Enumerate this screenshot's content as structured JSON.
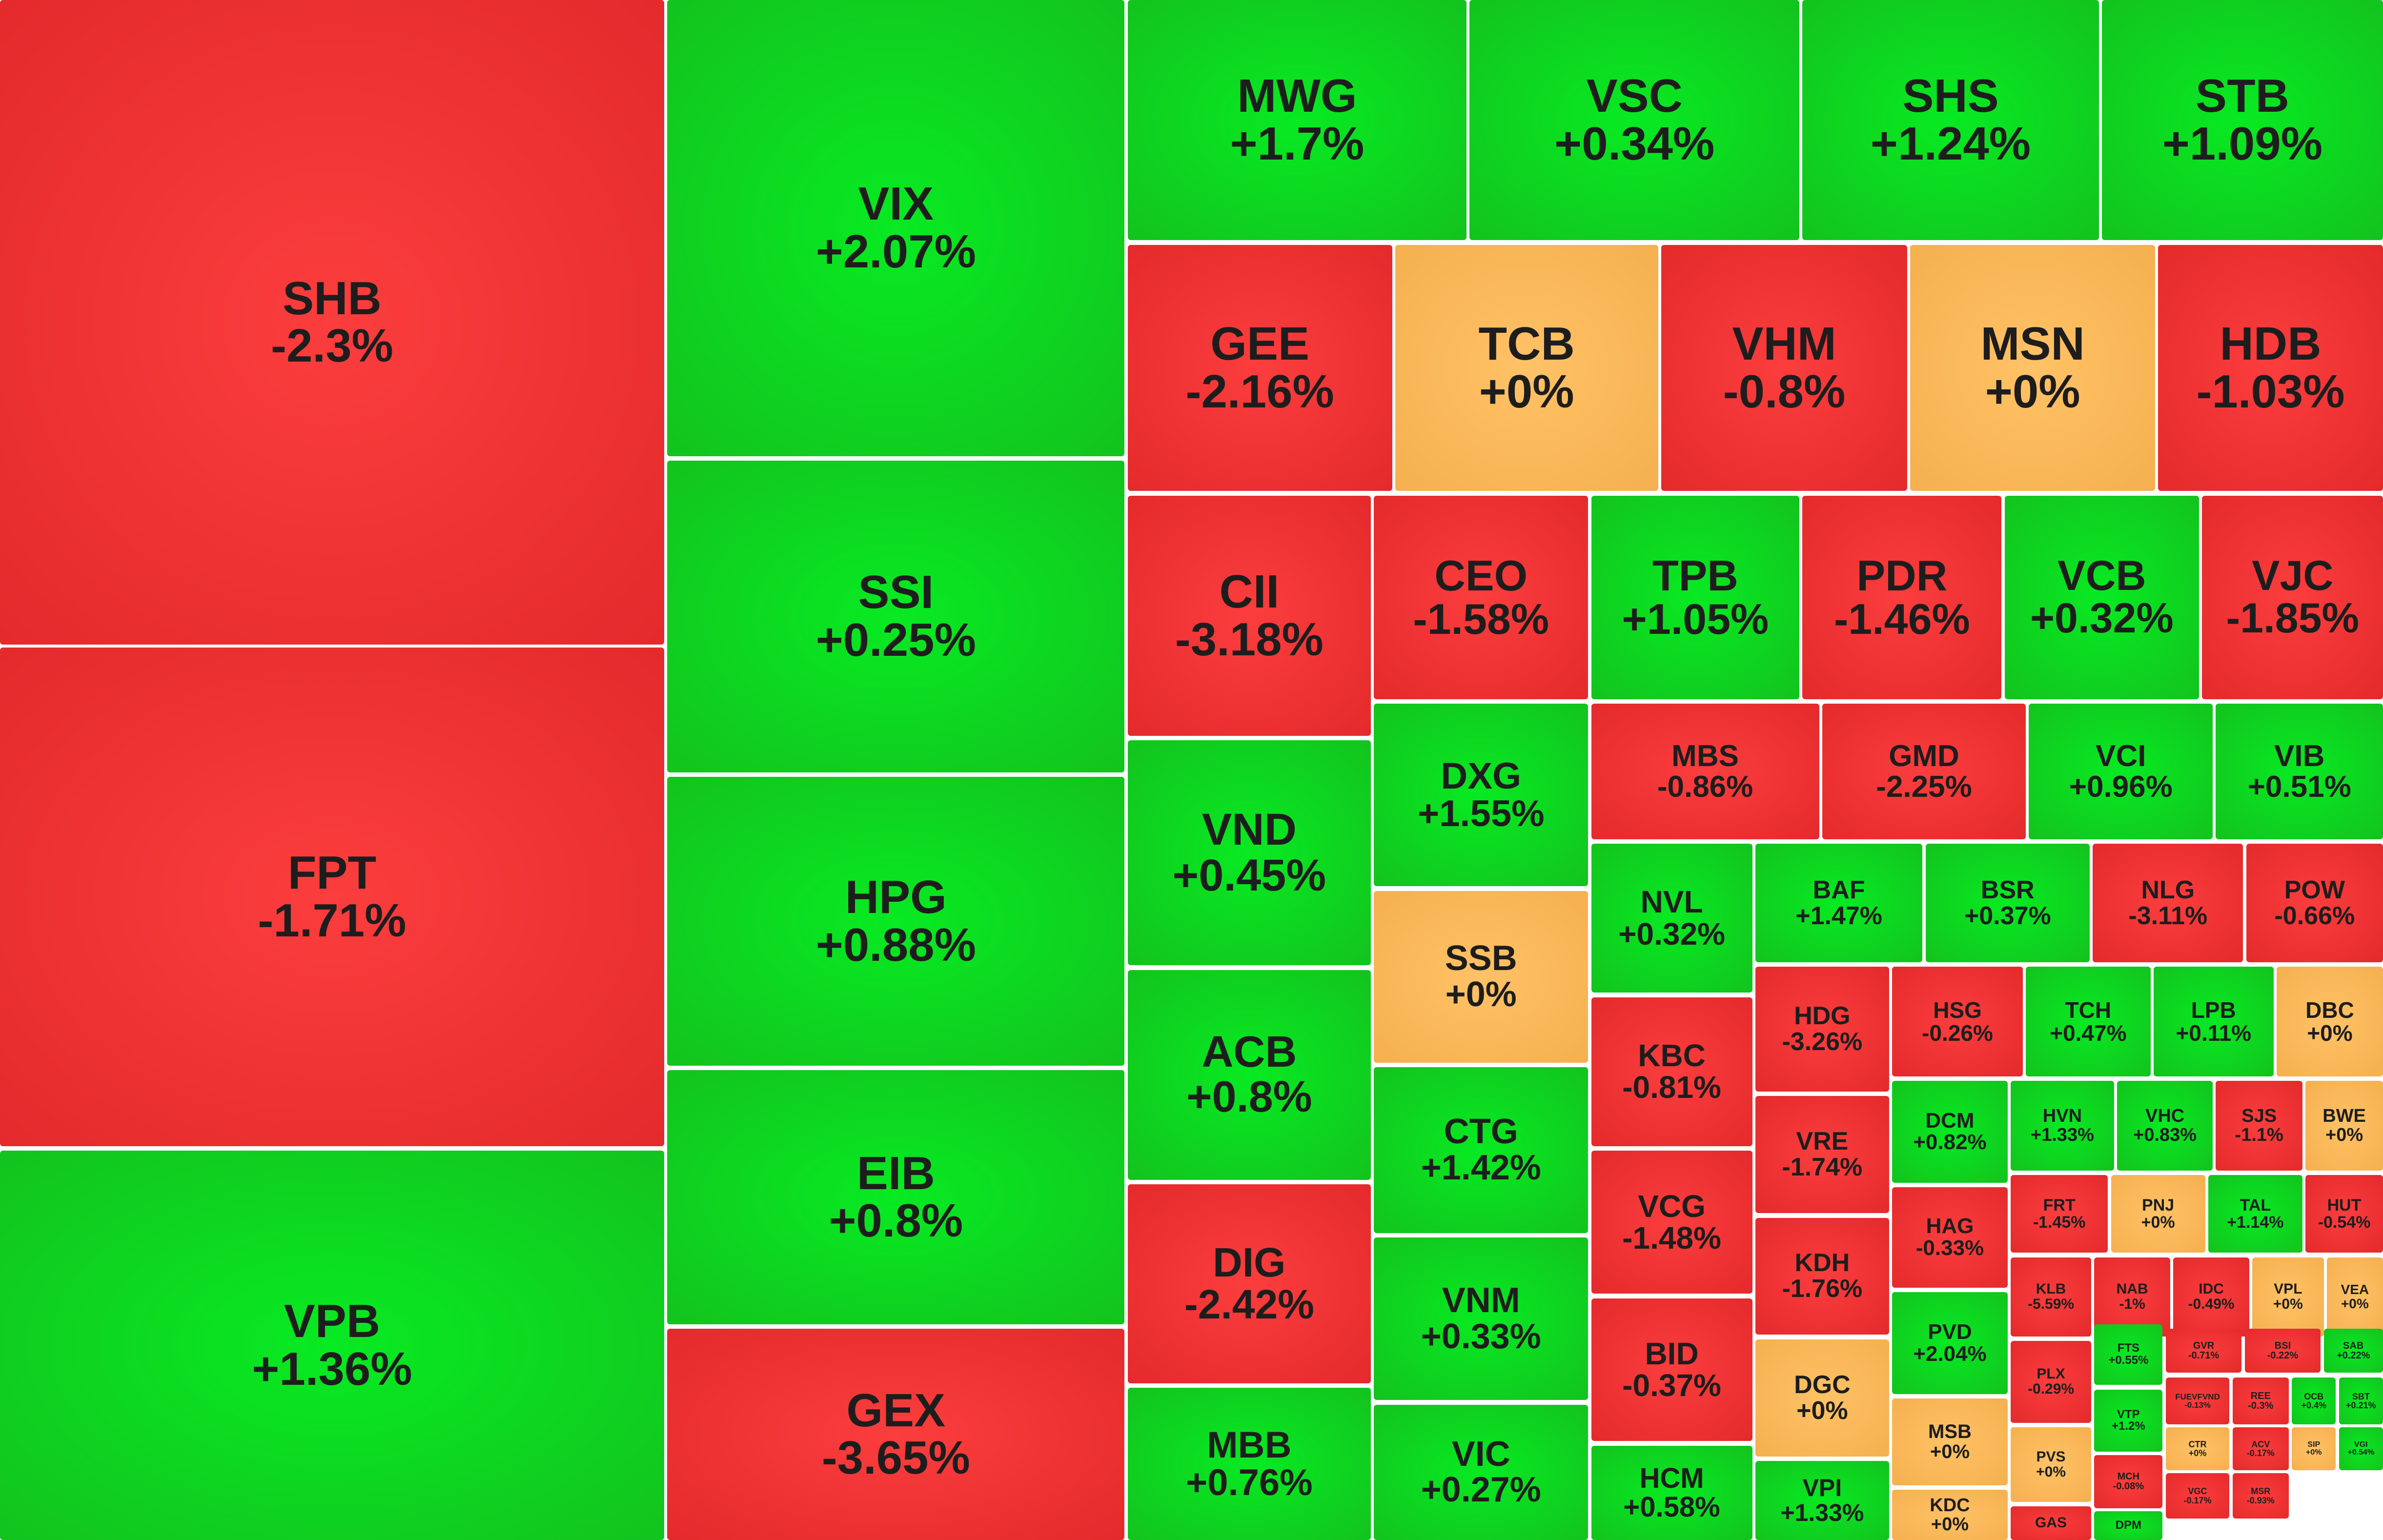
{
  "colors": {
    "down": "#ee3333",
    "up": "#0fd81f",
    "flat": "#fbb85c",
    "text": "#1d1d1d"
  },
  "chart_data": {
    "type": "heatmap",
    "value_unit": "%",
    "tiles": [
      {
        "ticker": "SHB",
        "change": "-2.3%",
        "value": -2.3
      },
      {
        "ticker": "FPT",
        "change": "-1.71%",
        "value": -1.71
      },
      {
        "ticker": "VPB",
        "change": "+1.36%",
        "value": 1.36
      },
      {
        "ticker": "VIX",
        "change": "+2.07%",
        "value": 2.07
      },
      {
        "ticker": "SSI",
        "change": "+0.25%",
        "value": 0.25
      },
      {
        "ticker": "HPG",
        "change": "+0.88%",
        "value": 0.88
      },
      {
        "ticker": "EIB",
        "change": "+0.8%",
        "value": 0.8
      },
      {
        "ticker": "GEX",
        "change": "-3.65%",
        "value": -3.65
      },
      {
        "ticker": "MWG",
        "change": "+1.7%",
        "value": 1.7
      },
      {
        "ticker": "VSC",
        "change": "+0.34%",
        "value": 0.34
      },
      {
        "ticker": "SHS",
        "change": "+1.24%",
        "value": 1.24
      },
      {
        "ticker": "STB",
        "change": "+1.09%",
        "value": 1.09
      },
      {
        "ticker": "GEE",
        "change": "-2.16%",
        "value": -2.16
      },
      {
        "ticker": "TCB",
        "change": "+0%",
        "value": 0
      },
      {
        "ticker": "VHM",
        "change": "-0.8%",
        "value": -0.8
      },
      {
        "ticker": "MSN",
        "change": "+0%",
        "value": 0
      },
      {
        "ticker": "HDB",
        "change": "-1.03%",
        "value": -1.03
      },
      {
        "ticker": "CII",
        "change": "-3.18%",
        "value": -3.18
      },
      {
        "ticker": "VND",
        "change": "+0.45%",
        "value": 0.45
      },
      {
        "ticker": "ACB",
        "change": "+0.8%",
        "value": 0.8
      },
      {
        "ticker": "DIG",
        "change": "-2.42%",
        "value": -2.42
      },
      {
        "ticker": "MBB",
        "change": "+0.76%",
        "value": 0.76
      },
      {
        "ticker": "CEO",
        "change": "-1.58%",
        "value": -1.58
      },
      {
        "ticker": "TPB",
        "change": "+1.05%",
        "value": 1.05
      },
      {
        "ticker": "PDR",
        "change": "-1.46%",
        "value": -1.46
      },
      {
        "ticker": "VCB",
        "change": "+0.32%",
        "value": 0.32
      },
      {
        "ticker": "VJC",
        "change": "-1.85%",
        "value": -1.85
      },
      {
        "ticker": "DXG",
        "change": "+1.55%",
        "value": 1.55
      },
      {
        "ticker": "SSB",
        "change": "+0%",
        "value": 0
      },
      {
        "ticker": "CTG",
        "change": "+1.42%",
        "value": 1.42
      },
      {
        "ticker": "VNM",
        "change": "+0.33%",
        "value": 0.33
      },
      {
        "ticker": "VIC",
        "change": "+0.27%",
        "value": 0.27
      },
      {
        "ticker": "MBS",
        "change": "-0.86%",
        "value": -0.86
      },
      {
        "ticker": "GMD",
        "change": "-2.25%",
        "value": -2.25
      },
      {
        "ticker": "VCI",
        "change": "+0.96%",
        "value": 0.96
      },
      {
        "ticker": "VIB",
        "change": "+0.51%",
        "value": 0.51
      },
      {
        "ticker": "NVL",
        "change": "+0.32%",
        "value": 0.32
      },
      {
        "ticker": "KBC",
        "change": "-0.81%",
        "value": -0.81
      },
      {
        "ticker": "VCG",
        "change": "-1.48%",
        "value": -1.48
      },
      {
        "ticker": "BID",
        "change": "-0.37%",
        "value": -0.37
      },
      {
        "ticker": "HCM",
        "change": "+0.58%",
        "value": 0.58
      },
      {
        "ticker": "BAF",
        "change": "+1.47%",
        "value": 1.47
      },
      {
        "ticker": "BSR",
        "change": "+0.37%",
        "value": 0.37
      },
      {
        "ticker": "NLG",
        "change": "-3.11%",
        "value": -3.11
      },
      {
        "ticker": "POW",
        "change": "-0.66%",
        "value": -0.66
      },
      {
        "ticker": "HDG",
        "change": "-3.26%",
        "value": -3.26
      },
      {
        "ticker": "VRE",
        "change": "-1.74%",
        "value": -1.74
      },
      {
        "ticker": "KDH",
        "change": "-1.76%",
        "value": -1.76
      },
      {
        "ticker": "DGC",
        "change": "+0%",
        "value": 0
      },
      {
        "ticker": "VPI",
        "change": "+1.33%",
        "value": 1.33
      },
      {
        "ticker": "HSG",
        "change": "-0.26%",
        "value": -0.26
      },
      {
        "ticker": "TCH",
        "change": "+0.47%",
        "value": 0.47
      },
      {
        "ticker": "LPB",
        "change": "+0.11%",
        "value": 0.11
      },
      {
        "ticker": "DBC",
        "change": "+0%",
        "value": 0
      },
      {
        "ticker": "DCM",
        "change": "+0.82%",
        "value": 0.82
      },
      {
        "ticker": "HAG",
        "change": "-0.33%",
        "value": -0.33
      },
      {
        "ticker": "PVD",
        "change": "+2.04%",
        "value": 2.04
      },
      {
        "ticker": "MSB",
        "change": "+0%",
        "value": 0
      },
      {
        "ticker": "KDC",
        "change": "+0%",
        "value": 0
      },
      {
        "ticker": "HVN",
        "change": "+1.33%",
        "value": 1.33
      },
      {
        "ticker": "VHC",
        "change": "+0.83%",
        "value": 0.83
      },
      {
        "ticker": "SJS",
        "change": "-1.1%",
        "value": -1.1
      },
      {
        "ticker": "BWE",
        "change": "+0%",
        "value": 0
      },
      {
        "ticker": "FRT",
        "change": "-1.45%",
        "value": -1.45
      },
      {
        "ticker": "PNJ",
        "change": "+0%",
        "value": 0
      },
      {
        "ticker": "TAL",
        "change": "+1.14%",
        "value": 1.14
      },
      {
        "ticker": "HUT",
        "change": "-0.54%",
        "value": -0.54
      },
      {
        "ticker": "KLB",
        "change": "-5.59%",
        "value": -5.59
      },
      {
        "ticker": "NAB",
        "change": "-1%",
        "value": -1
      },
      {
        "ticker": "IDC",
        "change": "-0.49%",
        "value": -0.49
      },
      {
        "ticker": "VPL",
        "change": "+0%",
        "value": 0
      },
      {
        "ticker": "VEA",
        "change": "+0%",
        "value": 0
      },
      {
        "ticker": "PLX",
        "change": "-0.29%",
        "value": -0.29
      },
      {
        "ticker": "PVS",
        "change": "+0%",
        "value": 0
      },
      {
        "ticker": "GAS",
        "change": "",
        "value": null
      },
      {
        "ticker": "FTS",
        "change": "+0.55%",
        "value": 0.55
      },
      {
        "ticker": "VTP",
        "change": "+1.2%",
        "value": 1.2
      },
      {
        "ticker": "DPM",
        "change": "",
        "value": null
      },
      {
        "ticker": "GVR",
        "change": "-0.71%",
        "value": -0.71
      },
      {
        "ticker": "BSI",
        "change": "-0.22%",
        "value": -0.22
      },
      {
        "ticker": "SAB",
        "change": "+0.22%",
        "value": 0.22
      },
      {
        "ticker": "FUEVFVND",
        "change": "-0.13%",
        "value": -0.13
      },
      {
        "ticker": "REE",
        "change": "-0.3%",
        "value": -0.3
      },
      {
        "ticker": "OCB",
        "change": "+0.4%",
        "value": 0.4
      },
      {
        "ticker": "SBT",
        "change": "+0.21%",
        "value": 0.21
      },
      {
        "ticker": "CTR",
        "change": "+0%",
        "value": 0
      },
      {
        "ticker": "ACV",
        "change": "-0.17%",
        "value": -0.17
      },
      {
        "ticker": "SIP",
        "change": "+0%",
        "value": 0
      },
      {
        "ticker": "VGI",
        "change": "+0.54%",
        "value": 0.54
      },
      {
        "ticker": "MCH",
        "change": "-0.08%",
        "value": -0.08
      },
      {
        "ticker": "VGC",
        "change": "-0.17%",
        "value": -0.17
      },
      {
        "ticker": "MSR",
        "change": "-0.93%",
        "value": -0.93
      }
    ]
  }
}
